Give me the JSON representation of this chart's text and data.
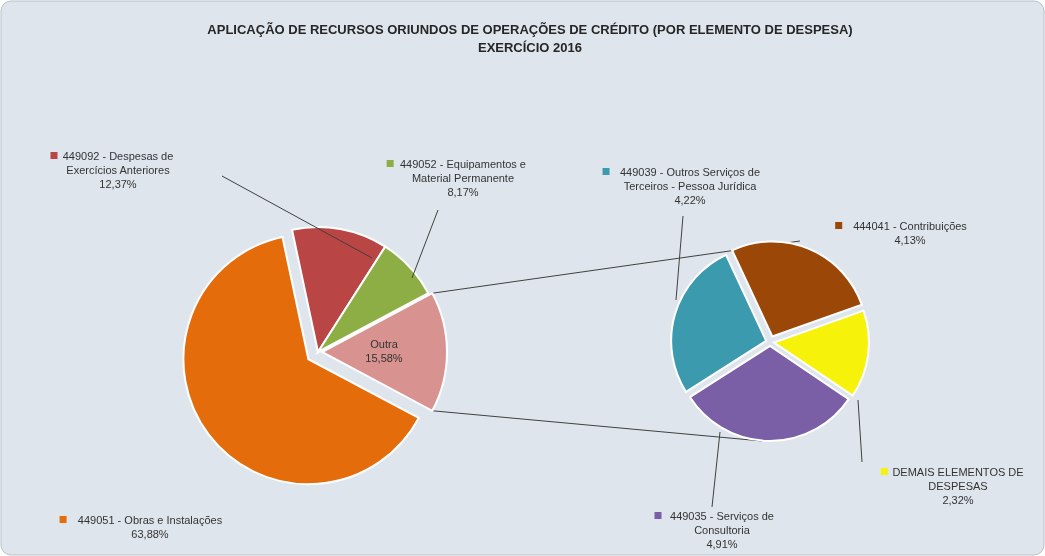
{
  "chart_data": [
    {
      "type": "pie",
      "title": "APLICAÇÃO DE RECURSOS ORIUNDOS DE OPERAÇÕES DE CRÉDITO (POR ELEMENTO DE DESPESA)",
      "subtitle": "EXERCÍCIO 2016",
      "categories": [
        "449051 - Obras e Instalações",
        "449092 - Despesas de Exercícios Anteriores",
        "449052 - Equipamentos e Material Permanente",
        "Outra"
      ],
      "values": [
        63.88,
        12.37,
        8.17,
        15.58
      ],
      "value_labels": [
        "63,88%",
        "12,37%",
        "8,17%",
        "15,58%"
      ],
      "colors": [
        "#e46c0a",
        "#b94544",
        "#8dae45",
        "#d89290"
      ],
      "legend": "top left"
    },
    {
      "type": "pie",
      "categories": [
        "444041 - Contribuições",
        "DEMAIS ELEMENTOS DE DESPESAS",
        "449035 - Serviços de Consultoria",
        "449039 - Outros Serviços de Terceiros - Pessoa Jurídica"
      ],
      "values": [
        4.13,
        2.32,
        4.91,
        4.22
      ],
      "value_labels": [
        "4,13%",
        "2,32%",
        "4,91%",
        "4,22%"
      ],
      "colors": [
        "#9a4708",
        "#f6f20a",
        "#7a5ea6",
        "#3c9aae"
      ],
      "legend": "bottom right"
    }
  ]
}
